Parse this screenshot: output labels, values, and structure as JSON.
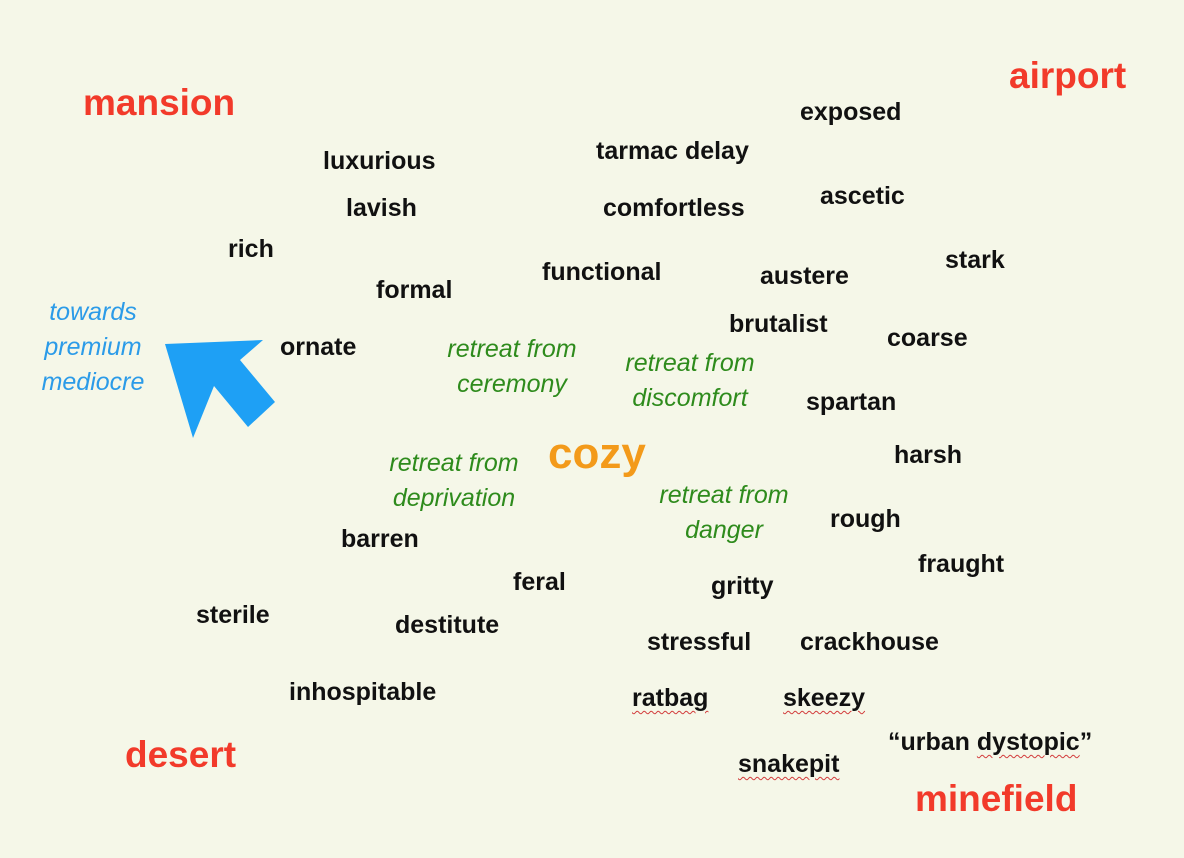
{
  "corners": {
    "mansion": "mansion",
    "airport": "airport",
    "desert": "desert",
    "minefield": "minefield"
  },
  "center": "cozy",
  "words": {
    "exposed": "exposed",
    "tarmac_delay": "tarmac delay",
    "luxurious": "luxurious",
    "ascetic": "ascetic",
    "lavish": "lavish",
    "comfortless": "comfortless",
    "rich": "rich",
    "stark": "stark",
    "functional": "functional",
    "austere": "austere",
    "formal": "formal",
    "brutalist": "brutalist",
    "coarse": "coarse",
    "ornate": "ornate",
    "spartan": "spartan",
    "harsh": "harsh",
    "rough": "rough",
    "barren": "barren",
    "fraught": "fraught",
    "feral": "feral",
    "gritty": "gritty",
    "sterile": "sterile",
    "destitute": "destitute",
    "stressful": "stressful",
    "crackhouse": "crackhouse",
    "inhospitable": "inhospitable",
    "ratbag": "ratbag",
    "skeezy": "skeezy",
    "urban_dystopic_open": "“urban ",
    "urban_dystopic_word": "dystopic",
    "urban_dystopic_close": "”",
    "snakepit": "snakepit"
  },
  "retreats": {
    "ceremony": [
      "retreat from",
      "ceremony"
    ],
    "discomfort": [
      "retreat from",
      "discomfort"
    ],
    "deprivation": [
      "retreat from",
      "deprivation"
    ],
    "danger": [
      "retreat from",
      "danger"
    ]
  },
  "toward": [
    "towards",
    "premium",
    "mediocre"
  ],
  "colors": {
    "background": "#f5f7e8",
    "corner": "#f23a2a",
    "word": "#111111",
    "retreat": "#2e8b1c",
    "center": "#f39a1a",
    "toward": "#2b9be8"
  },
  "icons": {
    "arrow": "arrow-up-left-icon"
  }
}
